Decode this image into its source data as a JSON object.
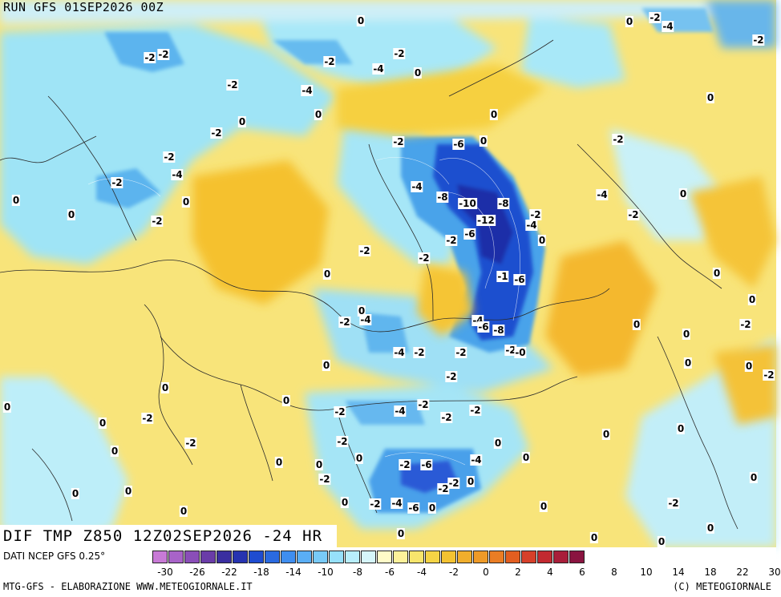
{
  "header": {
    "run": "RUN GFS 01SEP2026 00Z"
  },
  "panel": {
    "title": "DIF TMP Z850 12Z02SEP2026 -24 HR"
  },
  "footer": {
    "source": "DATI NCEP GFS 0.25°",
    "credit_left": "MTG-GFS - ELABORAZIONE WWW.METEOGIORNALE.IT",
    "credit_right": "(C) METEOGIORNALE"
  },
  "legend": {
    "colors": [
      "#c87ad6",
      "#a863c8",
      "#8a4eb8",
      "#6a3ca8",
      "#3a2ea0",
      "#2633b0",
      "#1e4cd0",
      "#2a6ae0",
      "#3f8ef0",
      "#5aaef5",
      "#78caf8",
      "#96e0fb",
      "#b8eefc",
      "#d6f6fb",
      "#fffbc8",
      "#fdf19a",
      "#f8e56c",
      "#f5d445",
      "#f3c232",
      "#f0ae2c",
      "#ee9a28",
      "#ea7d24",
      "#e25e20",
      "#d6402a",
      "#c22a30",
      "#a81e3a",
      "#8a1440"
    ],
    "tick_labels": [
      "-30",
      "-26",
      "-22",
      "-18",
      "-14",
      "-10",
      "-8",
      "-6",
      "-4",
      "-2",
      "0",
      "2",
      "4",
      "6",
      "8",
      "10",
      "14",
      "18",
      "22",
      "30"
    ]
  },
  "contour_labels": [
    {
      "t": "0"
    },
    {
      "t": "-2"
    },
    {
      "t": "-4"
    },
    {
      "t": "-2"
    },
    {
      "t": "-2"
    },
    {
      "t": "-2"
    },
    {
      "t": "-4"
    },
    {
      "t": "0"
    },
    {
      "t": "-2"
    },
    {
      "t": "-2"
    },
    {
      "t": "-4"
    },
    {
      "t": "-2"
    },
    {
      "t": "0"
    },
    {
      "t": "-2"
    },
    {
      "t": "0"
    },
    {
      "t": "0"
    },
    {
      "t": "-2"
    },
    {
      "t": "0"
    },
    {
      "t": "-2"
    },
    {
      "t": "-4"
    },
    {
      "t": "-2"
    },
    {
      "t": "0"
    },
    {
      "t": "0"
    },
    {
      "t": "-2"
    },
    {
      "t": "-6"
    },
    {
      "t": "0"
    },
    {
      "t": "-4"
    },
    {
      "t": "-8"
    },
    {
      "t": "-10"
    },
    {
      "t": "-8"
    },
    {
      "t": "-2"
    },
    {
      "t": "-12"
    },
    {
      "t": "-4"
    },
    {
      "t": "-6"
    },
    {
      "t": "-2"
    },
    {
      "t": "0"
    },
    {
      "t": "-2"
    },
    {
      "t": "-2"
    },
    {
      "t": "0"
    },
    {
      "t": "-1"
    },
    {
      "t": "-6"
    },
    {
      "t": "-2"
    },
    {
      "t": "-4"
    },
    {
      "t": "-4"
    },
    {
      "t": "-6"
    },
    {
      "t": "-8"
    },
    {
      "t": "-2"
    },
    {
      "t": "-0"
    },
    {
      "t": "-4"
    },
    {
      "t": "-2"
    },
    {
      "t": "-2"
    },
    {
      "t": "-2"
    },
    {
      "t": "0"
    },
    {
      "t": "0"
    },
    {
      "t": "0"
    },
    {
      "t": "0"
    },
    {
      "t": "-2"
    },
    {
      "t": "-2"
    },
    {
      "t": "-4"
    },
    {
      "t": "-2"
    },
    {
      "t": "-2"
    },
    {
      "t": "-2"
    },
    {
      "t": "0"
    },
    {
      "t": "0"
    },
    {
      "t": "-2"
    },
    {
      "t": "-2"
    },
    {
      "t": "0"
    },
    {
      "t": "0"
    },
    {
      "t": "-2"
    },
    {
      "t": "0"
    },
    {
      "t": "-2"
    },
    {
      "t": "-6"
    },
    {
      "t": "-4"
    },
    {
      "t": "0"
    },
    {
      "t": "0"
    },
    {
      "t": "-2"
    },
    {
      "t": "0"
    },
    {
      "t": "-2"
    },
    {
      "t": "-4"
    },
    {
      "t": "-6"
    },
    {
      "t": "0"
    },
    {
      "t": "0"
    },
    {
      "t": "-2"
    },
    {
      "t": "0"
    },
    {
      "t": "0"
    },
    {
      "t": "0"
    },
    {
      "t": "0"
    },
    {
      "t": "0"
    },
    {
      "t": "0"
    },
    {
      "t": "0"
    },
    {
      "t": "0"
    },
    {
      "t": "0"
    },
    {
      "t": "0"
    },
    {
      "t": "0"
    },
    {
      "t": "-2"
    },
    {
      "t": "0"
    },
    {
      "t": "0"
    },
    {
      "t": "0"
    },
    {
      "t": "-2"
    },
    {
      "t": "0"
    },
    {
      "t": "0"
    },
    {
      "t": "-2"
    },
    {
      "t": "0"
    },
    {
      "t": "0"
    },
    {
      "t": "0"
    },
    {
      "t": "-2"
    },
    {
      "t": "-4"
    },
    {
      "t": "-2"
    },
    {
      "t": "0"
    },
    {
      "t": "0"
    }
  ]
}
